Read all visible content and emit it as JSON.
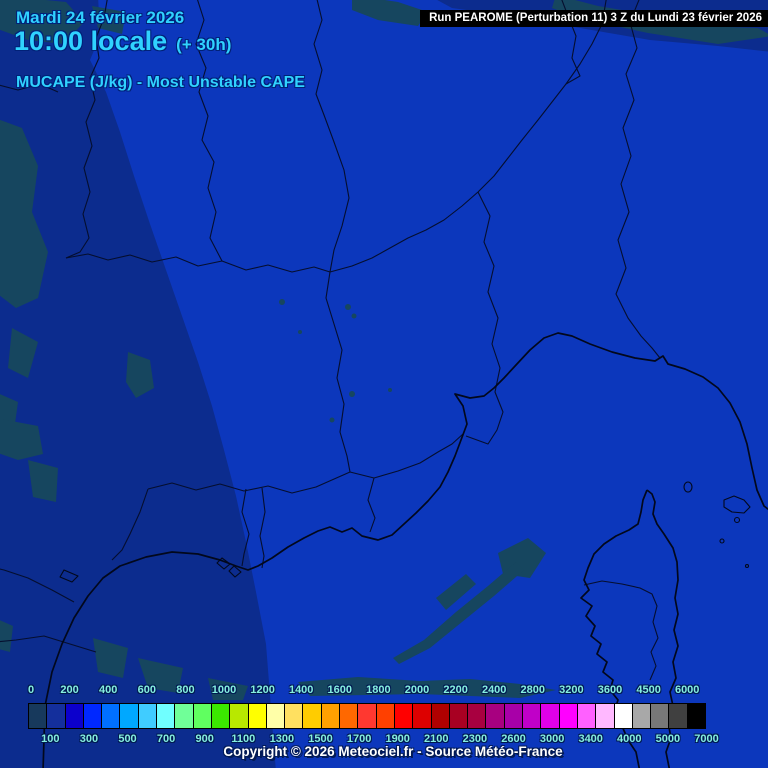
{
  "header": {
    "date": "Mardi 24 février 2026",
    "time": "10:00 locale",
    "offset": "(+ 30h)",
    "product": "MUCAPE (J/kg) - Most Unstable CAPE",
    "text_color": "#30d2ff"
  },
  "run_banner": {
    "text": "Run PEAROME (Perturbation 11) 3 Z du Lundi 23 février 2026",
    "bg_color": "#000000",
    "fg_color": "#ffffff"
  },
  "legend": {
    "top_labels": [
      "0",
      "200",
      "400",
      "600",
      "800",
      "1000",
      "1200",
      "1400",
      "1600",
      "1800",
      "2000",
      "2200",
      "2400",
      "2800",
      "3200",
      "3600",
      "4500",
      "6000"
    ],
    "bottom_labels": [
      "100",
      "300",
      "500",
      "700",
      "900",
      "1100",
      "1300",
      "1500",
      "1700",
      "1900",
      "2100",
      "2300",
      "2600",
      "3000",
      "3400",
      "4000",
      "5000",
      "7000"
    ],
    "colors": [
      "#17395c",
      "#142f9c",
      "#0c00cc",
      "#0028ff",
      "#0070ff",
      "#00a8ff",
      "#40ccff",
      "#70ffff",
      "#70ff98",
      "#60ff60",
      "#3be800",
      "#b8e800",
      "#ffff00",
      "#ffffa8",
      "#ffe060",
      "#ffcc00",
      "#ffa000",
      "#ff6800",
      "#ff3830",
      "#ff4000",
      "#ff0000",
      "#dd0000",
      "#b00000",
      "#a80022",
      "#a80040",
      "#a80080",
      "#a800a8",
      "#c000c8",
      "#e000e8",
      "#ff00ff",
      "#ff60ff",
      "#ffb8ff",
      "#ffffff",
      "#a8a8a8",
      "#787878",
      "#404040",
      "#000000"
    ],
    "label_color": "#85efe0"
  },
  "footer": {
    "copyright": "Copyright © 2026 Meteociel.fr - Source Météo-France"
  },
  "map": {
    "base_color": "#0c37bc",
    "shade_color": "#0c2c8e",
    "calm_color": "#16465f",
    "border_color": "#050e2e",
    "coast_color": "#02081c"
  }
}
